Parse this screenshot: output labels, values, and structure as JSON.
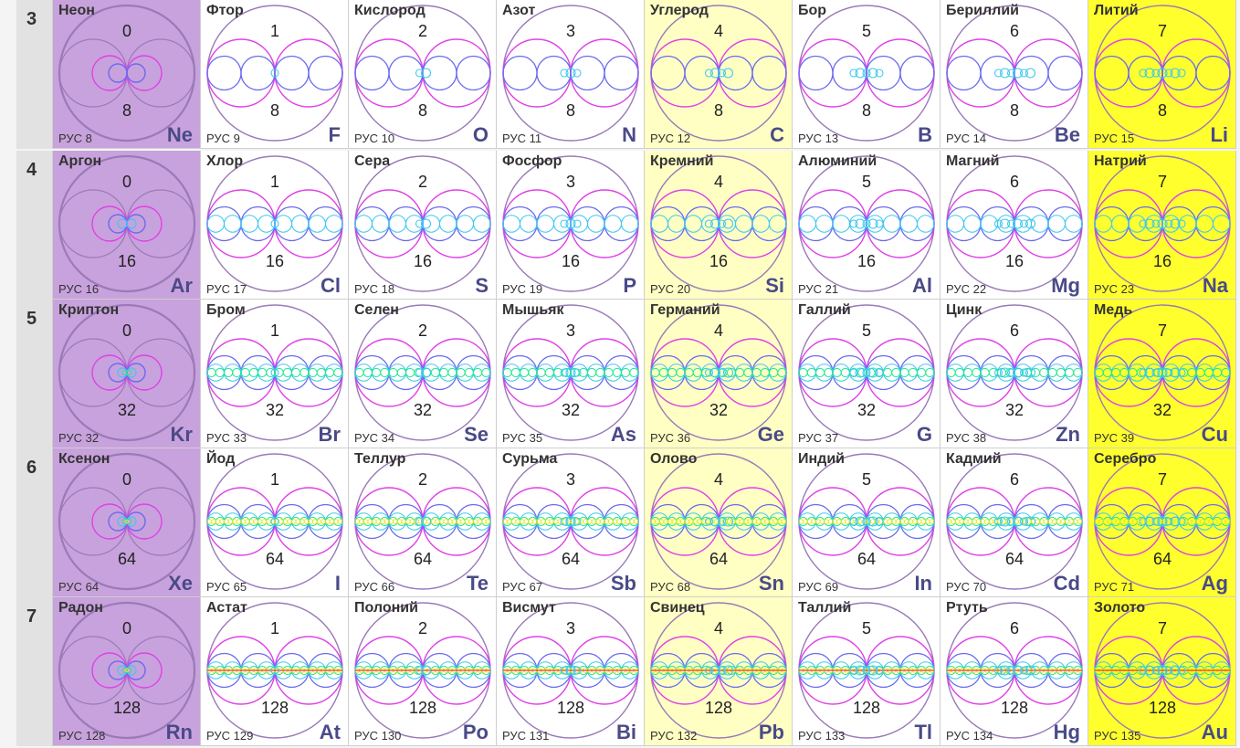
{
  "periods": [
    {
      "period": "3",
      "shell": "8",
      "level": 1,
      "elements": [
        {
          "name": "Неон",
          "group": "0",
          "rus": "РУС 8",
          "symbol": "Ne"
        },
        {
          "name": "Фтор",
          "group": "1",
          "rus": "РУС 9",
          "symbol": "F"
        },
        {
          "name": "Кислород",
          "group": "2",
          "rus": "РУС 10",
          "symbol": "O"
        },
        {
          "name": "Азот",
          "group": "3",
          "rus": "РУС 11",
          "symbol": "N"
        },
        {
          "name": "Углерод",
          "group": "4",
          "rus": "РУС 12",
          "symbol": "C"
        },
        {
          "name": "Бор",
          "group": "5",
          "rus": "РУС 13",
          "symbol": "B"
        },
        {
          "name": "Бериллий",
          "group": "6",
          "rus": "РУС 14",
          "symbol": "Be"
        },
        {
          "name": "Литий",
          "group": "7",
          "rus": "РУС 15",
          "symbol": "Li"
        }
      ]
    },
    {
      "period": "4",
      "shell": "16",
      "level": 2,
      "elements": [
        {
          "name": "Аргон",
          "group": "0",
          "rus": "РУС 16",
          "symbol": "Ar"
        },
        {
          "name": "Хлор",
          "group": "1",
          "rus": "РУС 17",
          "symbol": "Cl"
        },
        {
          "name": "Сера",
          "group": "2",
          "rus": "РУС 18",
          "symbol": "S"
        },
        {
          "name": "Фосфор",
          "group": "3",
          "rus": "РУС 19",
          "symbol": "P"
        },
        {
          "name": "Кремний",
          "group": "4",
          "rus": "РУС 20",
          "symbol": "Si"
        },
        {
          "name": "Алюминий",
          "group": "5",
          "rus": "РУС 21",
          "symbol": "Al"
        },
        {
          "name": "Магний",
          "group": "6",
          "rus": "РУС 22",
          "symbol": "Mg"
        },
        {
          "name": "Натрий",
          "group": "7",
          "rus": "РУС 23",
          "symbol": "Na"
        }
      ]
    },
    {
      "period": "5",
      "shell": "32",
      "level": 3,
      "elements": [
        {
          "name": "Криптон",
          "group": "0",
          "rus": "РУС 32",
          "symbol": "Kr"
        },
        {
          "name": "Бром",
          "group": "1",
          "rus": "РУС 33",
          "symbol": "Br"
        },
        {
          "name": "Селен",
          "group": "2",
          "rus": "РУС 34",
          "symbol": "Se"
        },
        {
          "name": "Мышьяк",
          "group": "3",
          "rus": "РУС 35",
          "symbol": "As"
        },
        {
          "name": "Германий",
          "group": "4",
          "rus": "РУС 36",
          "symbol": "Ge"
        },
        {
          "name": "Галлий",
          "group": "5",
          "rus": "РУС 37",
          "symbol": "G"
        },
        {
          "name": "Цинк",
          "group": "6",
          "rus": "РУС 38",
          "symbol": "Zn"
        },
        {
          "name": "Медь",
          "group": "7",
          "rus": "РУС 39",
          "symbol": "Cu"
        }
      ]
    },
    {
      "period": "6",
      "shell": "64",
      "level": 4,
      "elements": [
        {
          "name": "Ксенон",
          "group": "0",
          "rus": "РУС 64",
          "symbol": "Xe"
        },
        {
          "name": "Йод",
          "group": "1",
          "rus": "РУС 65",
          "symbol": "I"
        },
        {
          "name": "Теллур",
          "group": "2",
          "rus": "РУС 66",
          "symbol": "Te"
        },
        {
          "name": "Сурьма",
          "group": "3",
          "rus": "РУС 67",
          "symbol": "Sb"
        },
        {
          "name": "Олово",
          "group": "4",
          "rus": "РУС 68",
          "symbol": "Sn"
        },
        {
          "name": "Индий",
          "group": "5",
          "rus": "РУС 69",
          "symbol": "In"
        },
        {
          "name": "Кадмий",
          "group": "6",
          "rus": "РУС 70",
          "symbol": "Cd"
        },
        {
          "name": "Серебро",
          "group": "7",
          "rus": "РУС 71",
          "symbol": "Ag"
        }
      ]
    },
    {
      "period": "7",
      "shell": "128",
      "level": 5,
      "elements": [
        {
          "name": "Радон",
          "group": "0",
          "rus": "РУС 128",
          "symbol": "Rn"
        },
        {
          "name": "Астат",
          "group": "1",
          "rus": "РУС 129",
          "symbol": "At"
        },
        {
          "name": "Полоний",
          "group": "2",
          "rus": "РУС 130",
          "symbol": "Po"
        },
        {
          "name": "Висмут",
          "group": "3",
          "rus": "РУС 131",
          "symbol": "Bi"
        },
        {
          "name": "Свинец",
          "group": "4",
          "rus": "РУС 132",
          "symbol": "Pb"
        },
        {
          "name": "Таллий",
          "group": "5",
          "rus": "РУС 133",
          "symbol": "Tl"
        },
        {
          "name": "Ртуть",
          "group": "6",
          "rus": "РУС 134",
          "symbol": "Hg"
        },
        {
          "name": "Золото",
          "group": "7",
          "rus": "РУС 135",
          "symbol": "Au"
        }
      ]
    }
  ],
  "colors": {
    "noble_bg": "#c8a2dc",
    "group4_bg": "#ffffc4",
    "group7_bg": "#ffff2e",
    "default_bg": "#ffffff",
    "outer_circle": "#9a7ab8",
    "magenta": "#e040e8",
    "blue": "#6a6af0",
    "cyan": "#40c8f0",
    "green": "#20e890",
    "yellow": "#e8e820",
    "red": "#f03030"
  }
}
